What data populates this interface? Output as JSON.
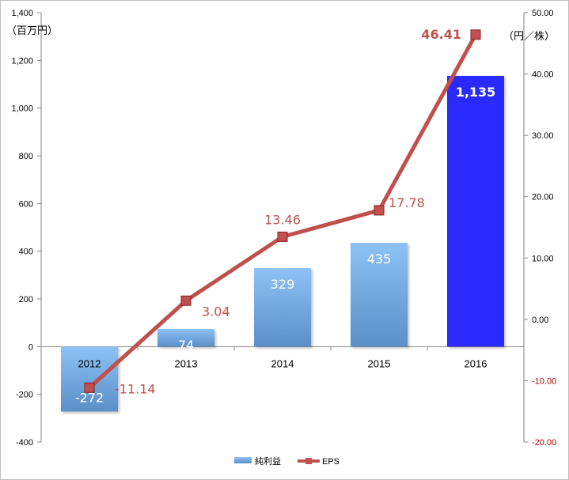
{
  "chart_data": {
    "type": "bar",
    "categories": [
      "2012",
      "2013",
      "2014",
      "2015",
      "2016"
    ],
    "series": [
      {
        "name": "純利益",
        "type": "bar",
        "axis": "left",
        "values": [
          -272,
          74,
          329,
          435,
          1135
        ],
        "labels": [
          "-272",
          "74",
          "329",
          "435",
          "1,135"
        ],
        "color": "#5b9bd5",
        "highlight_color": "#2b2bff"
      },
      {
        "name": "EPS",
        "type": "line",
        "axis": "right",
        "values": [
          -11.14,
          3.04,
          13.46,
          17.78,
          46.41
        ],
        "labels": [
          "-11.14",
          "3.04",
          "13.46",
          "17.78",
          "46.41"
        ],
        "color": "#c0504d"
      }
    ],
    "left_axis": {
      "unit": "（百万円）",
      "ylim": [
        -400,
        1400
      ],
      "ticks": [
        -400,
        -200,
        0,
        200,
        400,
        600,
        800,
        1000,
        1200,
        1400
      ],
      "tick_labels": [
        "-400",
        "-200",
        "0",
        "200",
        "400",
        "600",
        "800",
        "1,000",
        "1,200",
        "1,400"
      ]
    },
    "right_axis": {
      "unit": "（円／株）",
      "ylim": [
        -20,
        50
      ],
      "ticks": [
        -20,
        -10,
        0,
        10,
        20,
        30,
        40,
        50
      ],
      "tick_labels": [
        "-20.00",
        "-10.00",
        "0.00",
        "10.00",
        "20.00",
        "30.00",
        "40.00",
        "50.00"
      ]
    },
    "grid": false,
    "legend": "bottom"
  }
}
